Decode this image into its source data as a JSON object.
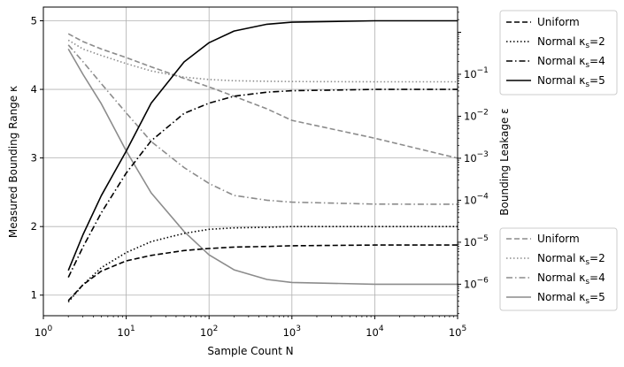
{
  "chart_data": {
    "type": "line",
    "xlabel": "Sample Count N",
    "ylabel_left": "Measured Bounding Range κ",
    "ylabel_right": "Bounding Leakage ε",
    "x_scale": "log",
    "xlim": [
      1,
      100000
    ],
    "ylim_left": [
      0.7,
      5.2
    ],
    "ylim_right_log10": [
      -6.75,
      0.6
    ],
    "grid": true,
    "x_tick_labels": [
      "10^0",
      "10^1",
      "10^2",
      "10^3",
      "10^4",
      "10^5"
    ],
    "y_left_tick_labels": [
      "1",
      "2",
      "3",
      "4",
      "5"
    ],
    "y_right_tick_labels": [
      "10^-1",
      "10^-2",
      "10^-3",
      "10^-4",
      "10^-5",
      "10^-6"
    ],
    "legend_kappa": {
      "placement": "top-right",
      "entries": [
        "Uniform",
        "Normal κs=2",
        "Normal κs=4",
        "Normal κs=5"
      ]
    },
    "legend_eps": {
      "placement": "bottom-right",
      "entries": [
        "Uniform",
        "Normal κs=2",
        "Normal κs=4",
        "Normal κs=5"
      ]
    },
    "x": [
      2,
      3,
      5,
      10,
      20,
      50,
      100,
      200,
      500,
      1000,
      10000,
      100000
    ],
    "series_kappa": [
      {
        "name": "Uniform",
        "color": "#000000",
        "dash": "dashed",
        "values": [
          0.92,
          1.15,
          1.35,
          1.5,
          1.58,
          1.65,
          1.68,
          1.7,
          1.71,
          1.72,
          1.73,
          1.73
        ]
      },
      {
        "name": "Normal κs=2",
        "color": "#000000",
        "dash": "dotted",
        "values": [
          0.9,
          1.15,
          1.4,
          1.62,
          1.78,
          1.9,
          1.96,
          1.98,
          1.99,
          2.0,
          2.0,
          2.0
        ]
      },
      {
        "name": "Normal κs=4",
        "color": "#000000",
        "dash": "dashdot",
        "values": [
          1.26,
          1.7,
          2.2,
          2.78,
          3.25,
          3.65,
          3.8,
          3.9,
          3.96,
          3.98,
          4.0,
          4.0
        ]
      },
      {
        "name": "Normal κs=5",
        "color": "#000000",
        "dash": "solid",
        "values": [
          1.36,
          1.88,
          2.45,
          3.1,
          3.8,
          4.4,
          4.68,
          4.85,
          4.95,
          4.98,
          5.0,
          5.0
        ]
      }
    ],
    "series_eps": [
      {
        "name": "Uniform",
        "color": "#8c8c8c",
        "dash": "dashed",
        "values": [
          0.92,
          0.6,
          0.4,
          0.25,
          0.15,
          0.08,
          0.05,
          0.03,
          0.015,
          0.008,
          0.003,
          0.001
        ]
      },
      {
        "name": "Normal κs=2",
        "color": "#8c8c8c",
        "dash": "dotted",
        "values": [
          0.65,
          0.4,
          0.28,
          0.18,
          0.12,
          0.085,
          0.075,
          0.07,
          0.068,
          0.067,
          0.066,
          0.066
        ]
      },
      {
        "name": "Normal κs=4",
        "color": "#8c8c8c",
        "dash": "dashdot",
        "values": [
          0.5,
          0.2,
          0.06,
          0.012,
          0.0025,
          0.0006,
          0.00025,
          0.00013,
          0.0001,
          9e-05,
          8.1e-05,
          8e-05
        ]
      },
      {
        "name": "Normal κs=5",
        "color": "#8c8c8c",
        "dash": "solid",
        "values": [
          0.4,
          0.1,
          0.02,
          0.0015,
          0.00015,
          1.8e-05,
          5e-06,
          2.2e-06,
          1.3e-06,
          1.1e-06,
          1e-06,
          1e-06
        ]
      }
    ]
  }
}
